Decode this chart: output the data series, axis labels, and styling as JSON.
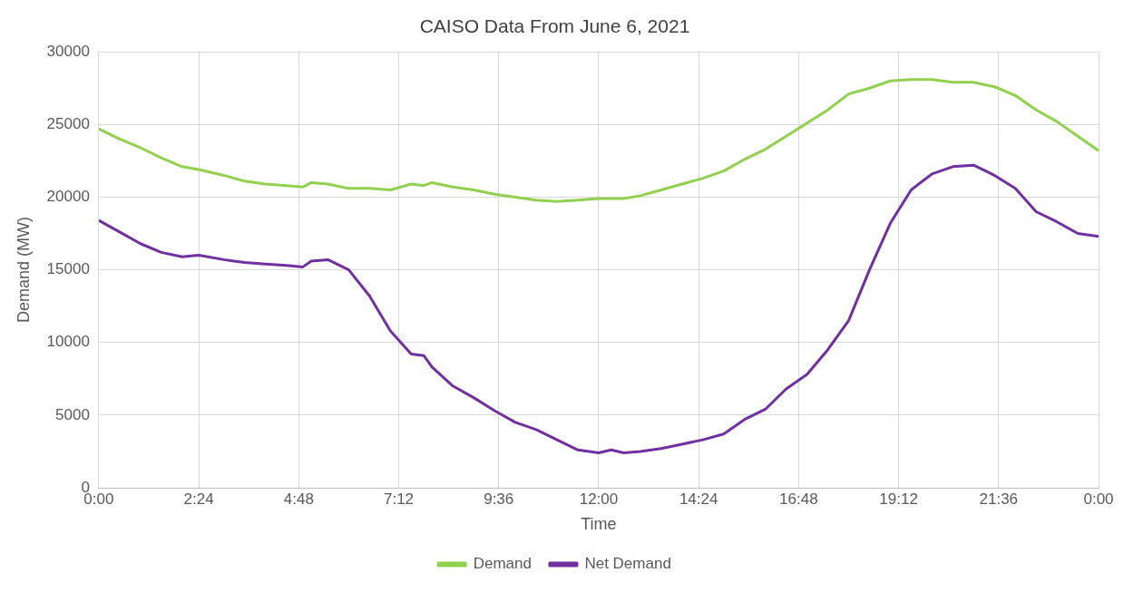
{
  "chart_data": {
    "type": "line",
    "title": "CAISO Data From June 6, 2021",
    "xlabel": "Time",
    "ylabel": "Demand (MW)",
    "xlim": [
      0,
      24
    ],
    "xticks": [
      {
        "value": 0,
        "label": "0:00"
      },
      {
        "value": 2.4,
        "label": "2:24"
      },
      {
        "value": 4.8,
        "label": "4:48"
      },
      {
        "value": 7.2,
        "label": "7:12"
      },
      {
        "value": 9.6,
        "label": "9:36"
      },
      {
        "value": 12,
        "label": "12:00"
      },
      {
        "value": 14.4,
        "label": "14:24"
      },
      {
        "value": 16.8,
        "label": "16:48"
      },
      {
        "value": 19.2,
        "label": "19:12"
      },
      {
        "value": 21.6,
        "label": "21:36"
      },
      {
        "value": 24,
        "label": "0:00"
      }
    ],
    "ylim": [
      0,
      30000
    ],
    "yticks": [
      0,
      5000,
      10000,
      15000,
      20000,
      25000,
      30000
    ],
    "grid": true,
    "legend": "bottom",
    "marker": "none",
    "line_style": "solid",
    "x": [
      0,
      0.5,
      1,
      1.5,
      2,
      2.4,
      3,
      3.5,
      4,
      4.5,
      4.9,
      5.1,
      5.5,
      6,
      6.5,
      7,
      7.5,
      7.8,
      8,
      8.5,
      9,
      9.5,
      10,
      10.5,
      11,
      11.5,
      12,
      12.3,
      12.6,
      13,
      13.5,
      14,
      14.5,
      15,
      15.5,
      16,
      16.5,
      17,
      17.5,
      18,
      18.5,
      19,
      19.5,
      20,
      20.5,
      21,
      21.5,
      22,
      22.5,
      23,
      23.5,
      24
    ],
    "series": [
      {
        "name": "Demand",
        "color": "#92d050",
        "values": [
          24700,
          24000,
          23400,
          22700,
          22100,
          21900,
          21500,
          21100,
          20900,
          20800,
          20700,
          21000,
          20900,
          20600,
          20600,
          20500,
          20900,
          20800,
          21000,
          20700,
          20500,
          20200,
          20000,
          19800,
          19700,
          19800,
          19900,
          19900,
          19900,
          20100,
          20500,
          20900,
          21300,
          21800,
          22600,
          23300,
          24200,
          25100,
          26000,
          27100,
          27500,
          28000,
          28100,
          28100,
          27900,
          27900,
          27600,
          27000,
          26000,
          25200,
          24200,
          23200
        ]
      },
      {
        "name": "Net Demand",
        "color": "#7030a0",
        "values": [
          18400,
          17600,
          16800,
          16200,
          15900,
          16000,
          15700,
          15500,
          15400,
          15300,
          15200,
          15600,
          15700,
          15000,
          13200,
          10800,
          9200,
          9100,
          8300,
          7000,
          6200,
          5300,
          4500,
          4000,
          3300,
          2600,
          2400,
          2600,
          2400,
          2500,
          2700,
          3000,
          3300,
          3700,
          4700,
          5400,
          6800,
          7800,
          9500,
          11500,
          15000,
          18200,
          20500,
          21600,
          22100,
          22200,
          21500,
          20600,
          19000,
          18300,
          17500,
          17300
        ]
      }
    ]
  }
}
